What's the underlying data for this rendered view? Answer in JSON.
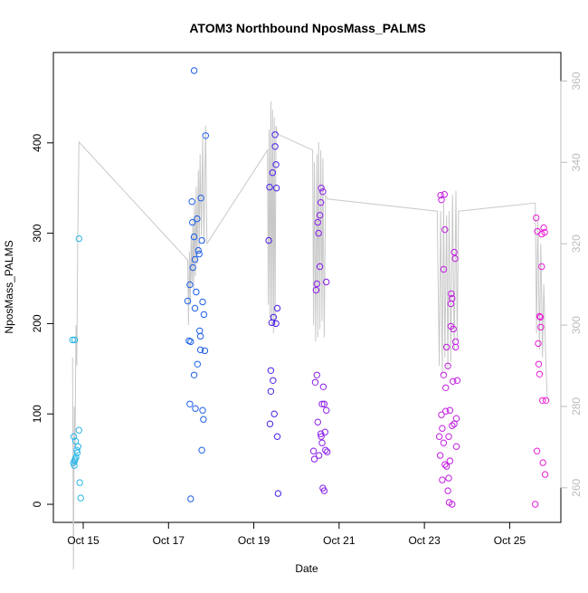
{
  "chart_data": {
    "type": "scatter",
    "title": "ATOM3 Northbound NposMass_PALMS",
    "xlabel": "Date",
    "ylabel": "NposMass_PALMS",
    "x_ticks": [
      {
        "day": 15,
        "label": "Oct 15"
      },
      {
        "day": 17,
        "label": "Oct 17"
      },
      {
        "day": 19,
        "label": "Oct 19"
      },
      {
        "day": 21,
        "label": "Oct 21"
      },
      {
        "day": 23,
        "label": "Oct 23"
      },
      {
        "day": 25,
        "label": "Oct 25"
      }
    ],
    "xlim": [
      14.3,
      26.2
    ],
    "ylim": [
      -20,
      500
    ],
    "y_ticks": [
      0,
      100,
      200,
      300,
      400
    ],
    "y2lim": [
      251.5,
      367
    ],
    "y2_ticks": [
      260,
      280,
      300,
      320,
      340,
      360
    ],
    "grid": false,
    "legend": "none",
    "colors": {
      "trace": "#c8c8c8",
      "axis2": "#bbbbbb",
      "series": [
        "#29b6e6",
        "#1f5fe8",
        "#4b1ee8",
        "#8a1ee8",
        "#c21ee0",
        "#e81ed6"
      ]
    },
    "series": [
      {
        "values": [
          [
            14.75,
            182
          ],
          [
            14.78,
            75
          ],
          [
            14.8,
            182
          ],
          [
            14.82,
            70
          ],
          [
            14.85,
            60
          ],
          [
            14.8,
            48
          ],
          [
            14.77,
            46
          ],
          [
            14.83,
            52
          ],
          [
            14.86,
            57
          ],
          [
            14.88,
            64
          ],
          [
            14.9,
            82
          ],
          [
            14.9,
            294
          ],
          [
            14.92,
            24
          ],
          [
            14.94,
            7
          ],
          [
            14.79,
            43
          ],
          [
            14.81,
            50
          ]
        ]
      },
      {
        "values": [
          [
            17.45,
            225
          ],
          [
            17.48,
            181
          ],
          [
            17.5,
            111
          ],
          [
            17.52,
            180
          ],
          [
            17.52,
            6
          ],
          [
            17.55,
            335
          ],
          [
            17.56,
            312
          ],
          [
            17.57,
            262
          ],
          [
            17.6,
            296
          ],
          [
            17.6,
            143
          ],
          [
            17.62,
            217
          ],
          [
            17.63,
            106
          ],
          [
            17.65,
            235
          ],
          [
            17.67,
            316
          ],
          [
            17.68,
            155
          ],
          [
            17.7,
            281
          ],
          [
            17.72,
            277
          ],
          [
            17.73,
            192
          ],
          [
            17.75,
            171
          ],
          [
            17.76,
            339
          ],
          [
            17.78,
            60
          ],
          [
            17.78,
            292
          ],
          [
            17.8,
            224
          ],
          [
            17.8,
            104
          ],
          [
            17.82,
            94
          ],
          [
            17.83,
            210
          ],
          [
            17.85,
            170
          ],
          [
            17.87,
            408
          ],
          [
            17.6,
            480
          ],
          [
            17.5,
            243
          ],
          [
            17.62,
            271
          ],
          [
            17.75,
            186
          ]
        ]
      },
      {
        "values": [
          [
            19.35,
            292
          ],
          [
            19.37,
            351
          ],
          [
            19.38,
            89
          ],
          [
            19.4,
            125
          ],
          [
            19.4,
            148
          ],
          [
            19.42,
            201
          ],
          [
            19.44,
            367
          ],
          [
            19.45,
            137
          ],
          [
            19.46,
            207
          ],
          [
            19.48,
            100
          ],
          [
            19.5,
            396
          ],
          [
            19.5,
            409
          ],
          [
            19.52,
            376
          ],
          [
            19.52,
            200
          ],
          [
            19.55,
            75
          ],
          [
            19.55,
            217
          ],
          [
            19.57,
            12
          ],
          [
            19.53,
            350
          ]
        ]
      },
      {
        "values": [
          [
            20.4,
            59
          ],
          [
            20.42,
            50
          ],
          [
            20.44,
            135
          ],
          [
            20.46,
            237
          ],
          [
            20.48,
            244
          ],
          [
            20.48,
            143
          ],
          [
            20.5,
            312
          ],
          [
            20.5,
            91
          ],
          [
            20.52,
            300
          ],
          [
            20.53,
            54
          ],
          [
            20.55,
            320
          ],
          [
            20.55,
            263
          ],
          [
            20.57,
            334
          ],
          [
            20.57,
            78
          ],
          [
            20.58,
            350
          ],
          [
            20.6,
            111
          ],
          [
            20.6,
            68
          ],
          [
            20.62,
            18
          ],
          [
            20.62,
            346
          ],
          [
            20.65,
            15
          ],
          [
            20.65,
            111
          ],
          [
            20.67,
            80
          ],
          [
            20.68,
            60
          ],
          [
            20.7,
            246
          ],
          [
            20.7,
            104
          ],
          [
            20.72,
            58
          ],
          [
            20.63,
            130
          ],
          [
            20.58,
            75
          ]
        ]
      },
      {
        "values": [
          [
            23.35,
            75
          ],
          [
            23.37,
            54
          ],
          [
            23.38,
            342
          ],
          [
            23.4,
            337
          ],
          [
            23.4,
            99
          ],
          [
            23.42,
            84
          ],
          [
            23.42,
            27
          ],
          [
            23.45,
            260
          ],
          [
            23.45,
            143
          ],
          [
            23.47,
            343
          ],
          [
            23.48,
            304
          ],
          [
            23.5,
            129
          ],
          [
            23.5,
            103
          ],
          [
            23.52,
            174
          ],
          [
            23.52,
            42
          ],
          [
            23.55,
            153
          ],
          [
            23.55,
            15
          ],
          [
            23.57,
            75
          ],
          [
            23.57,
            29
          ],
          [
            23.6,
            104
          ],
          [
            23.6,
            48
          ],
          [
            23.62,
            197
          ],
          [
            23.62,
            222
          ],
          [
            23.63,
            233
          ],
          [
            23.65,
            228
          ],
          [
            23.65,
            87
          ],
          [
            23.67,
            136
          ],
          [
            23.68,
            194
          ],
          [
            23.7,
            89
          ],
          [
            23.7,
            279
          ],
          [
            23.72,
            272
          ],
          [
            23.73,
            180
          ],
          [
            23.73,
            174
          ],
          [
            23.75,
            95
          ],
          [
            23.75,
            64
          ],
          [
            23.77,
            137
          ],
          [
            23.45,
            68
          ],
          [
            23.58,
            2
          ],
          [
            23.48,
            44
          ],
          [
            23.65,
            0
          ]
        ]
      },
      {
        "values": [
          [
            25.6,
            0
          ],
          [
            25.62,
            317
          ],
          [
            25.64,
            59
          ],
          [
            25.65,
            302
          ],
          [
            25.67,
            178
          ],
          [
            25.68,
            155
          ],
          [
            25.7,
            208
          ],
          [
            25.7,
            144
          ],
          [
            25.72,
            207
          ],
          [
            25.73,
            196
          ],
          [
            25.75,
            299
          ],
          [
            25.75,
            263
          ],
          [
            25.77,
            115
          ],
          [
            25.78,
            46
          ],
          [
            25.8,
            306
          ],
          [
            25.82,
            301
          ],
          [
            25.83,
            33
          ],
          [
            25.85,
            115
          ]
        ]
      }
    ],
    "trace": [
      [
        14.75,
        292
      ],
      [
        14.77,
        240
      ],
      [
        14.79,
        280
      ],
      [
        14.81,
        270
      ],
      [
        14.83,
        300
      ],
      [
        14.85,
        290
      ],
      [
        14.87,
        320
      ],
      [
        14.9,
        345
      ],
      [
        17.45,
        316
      ],
      [
        17.47,
        300
      ],
      [
        17.49,
        318
      ],
      [
        17.51,
        305
      ],
      [
        17.53,
        322
      ],
      [
        17.55,
        310
      ],
      [
        17.57,
        326
      ],
      [
        17.59,
        308
      ],
      [
        17.61,
        330
      ],
      [
        17.63,
        312
      ],
      [
        17.65,
        334
      ],
      [
        17.67,
        315
      ],
      [
        17.7,
        338
      ],
      [
        17.72,
        318
      ],
      [
        17.74,
        342
      ],
      [
        17.77,
        322
      ],
      [
        17.8,
        346
      ],
      [
        17.83,
        320
      ],
      [
        17.87,
        349
      ],
      [
        17.9,
        320
      ],
      [
        19.32,
        343
      ],
      [
        19.34,
        305
      ],
      [
        19.36,
        348
      ],
      [
        19.38,
        302
      ],
      [
        19.4,
        355
      ],
      [
        19.42,
        300
      ],
      [
        19.44,
        353
      ],
      [
        19.46,
        298
      ],
      [
        19.48,
        351
      ],
      [
        19.5,
        300
      ],
      [
        19.52,
        349
      ],
      [
        19.55,
        347
      ],
      [
        20.38,
        343
      ],
      [
        20.4,
        300
      ],
      [
        20.42,
        340
      ],
      [
        20.45,
        296
      ],
      [
        20.48,
        342
      ],
      [
        20.5,
        297
      ],
      [
        20.52,
        345
      ],
      [
        20.55,
        299
      ],
      [
        20.57,
        343
      ],
      [
        20.6,
        301
      ],
      [
        20.62,
        341
      ],
      [
        20.65,
        297
      ],
      [
        20.68,
        332
      ],
      [
        20.72,
        331
      ],
      [
        23.3,
        328
      ],
      [
        23.35,
        290
      ],
      [
        23.38,
        328
      ],
      [
        23.42,
        288
      ],
      [
        23.45,
        330
      ],
      [
        23.48,
        292
      ],
      [
        23.52,
        327
      ],
      [
        23.55,
        289
      ],
      [
        23.58,
        328
      ],
      [
        23.62,
        291
      ],
      [
        23.66,
        332
      ],
      [
        23.7,
        294
      ],
      [
        23.74,
        333
      ],
      [
        23.77,
        296
      ],
      [
        23.8,
        328
      ],
      [
        25.6,
        330
      ],
      [
        25.63,
        298
      ],
      [
        25.66,
        326
      ],
      [
        25.7,
        294
      ],
      [
        25.73,
        320
      ],
      [
        25.77,
        292
      ],
      [
        25.8,
        310
      ],
      [
        25.85,
        290
      ],
      [
        25.88,
        282
      ]
    ]
  }
}
